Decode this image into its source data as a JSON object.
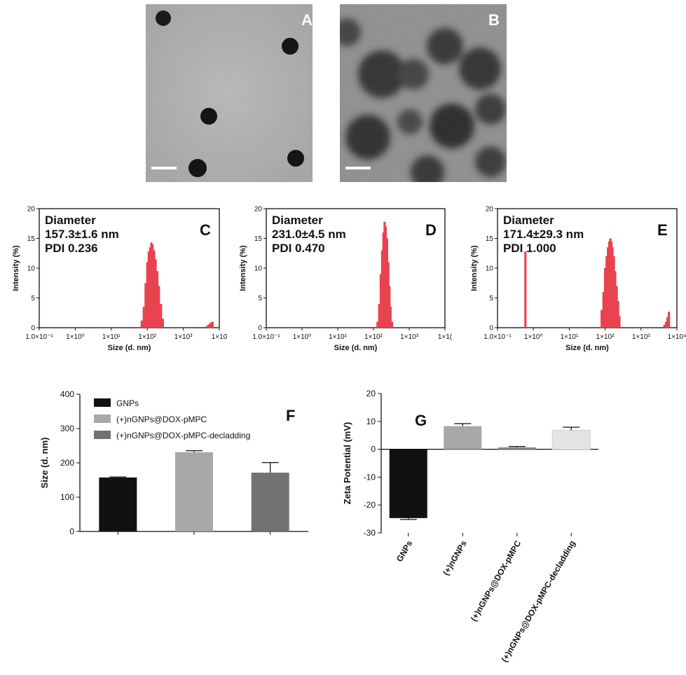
{
  "panels": {
    "A": {
      "letter": "A"
    },
    "B": {
      "letter": "B"
    }
  },
  "colors": {
    "dls_bar": "#e8434f",
    "series": [
      "#111111",
      "#a8a8a8",
      "#727272",
      "#111111",
      "#a8a8a8",
      "#8f8f8f",
      "#e4e4e4"
    ]
  },
  "chart_data": [
    {
      "id": "C",
      "type": "bar",
      "letter": "C",
      "annotation": [
        "Diameter",
        "157.3±1.6 nm",
        "PDI 0.236"
      ],
      "xlabel": "Size (d. nm)",
      "ylabel": "Intensity (%)",
      "xscale": "log",
      "xlim": [
        0.1,
        10000
      ],
      "ylim": [
        0,
        20
      ],
      "yticks": [
        0,
        5,
        10,
        15,
        20
      ],
      "xtick_labels": [
        "1.0×10⁻¹",
        "1×10⁰",
        "1×10¹",
        "1×10²",
        "1×10³",
        "1×10"
      ],
      "x": [
        70,
        80,
        90,
        100,
        110,
        120,
        130,
        140,
        155,
        170,
        190,
        210,
        240,
        270,
        4500,
        5000,
        5500,
        6000,
        6500
      ],
      "values": [
        1.2,
        3.5,
        7.5,
        11.0,
        12.8,
        13.5,
        14.3,
        14.0,
        13.0,
        11.5,
        9.5,
        7.0,
        4.0,
        1.5,
        0.3,
        0.5,
        0.7,
        0.9,
        1.0
      ]
    },
    {
      "id": "D",
      "type": "bar",
      "letter": "D",
      "annotation": [
        "Diameter",
        "231.0±4.5 nm",
        "PDI 0.470"
      ],
      "xlabel": "Size (d. nm)",
      "ylabel": "Intensity (%)",
      "xscale": "log",
      "xlim": [
        0.1,
        10000
      ],
      "ylim": [
        0,
        20
      ],
      "yticks": [
        0,
        5,
        10,
        15,
        20
      ],
      "xtick_labels": [
        "1.0×10⁻¹",
        "1×10⁰",
        "1×10¹",
        "1×10²",
        "1×10³",
        "1×1("
      ],
      "x": [
        130,
        145,
        160,
        175,
        190,
        205,
        220,
        240,
        260,
        280,
        300,
        330
      ],
      "values": [
        1.0,
        4.0,
        9.0,
        13.0,
        16.0,
        17.8,
        17.0,
        15.0,
        11.0,
        7.0,
        3.5,
        1.0
      ]
    },
    {
      "id": "E",
      "type": "bar",
      "letter": "E",
      "annotation": [
        "Diameter",
        "171.4±29.3 nm",
        "PDI 1.000"
      ],
      "xlabel": "Size (d. nm)",
      "ylabel": "Intensity (%)",
      "xscale": "log",
      "xlim": [
        0.1,
        10000
      ],
      "ylim": [
        0,
        20
      ],
      "yticks": [
        0,
        5,
        10,
        15,
        20
      ],
      "xtick_labels": [
        "1.0×10⁻¹",
        "1×10⁰",
        "1×10¹",
        "1×10²",
        "1×10³",
        "1×10⁴"
      ],
      "x": [
        0.6,
        80,
        90,
        100,
        110,
        120,
        130,
        140,
        150,
        160,
        175,
        190,
        210,
        230,
        250,
        4500,
        5000,
        5500,
        6000
      ],
      "values": [
        12.8,
        3.0,
        6.0,
        10.0,
        12.0,
        13.5,
        14.5,
        15.0,
        14.5,
        13.5,
        12.0,
        9.5,
        7.0,
        4.5,
        2.0,
        0.5,
        1.0,
        1.8,
        2.7
      ]
    },
    {
      "id": "F",
      "type": "bar",
      "letter": "F",
      "ylabel": "Size (d. nm)",
      "ylim": [
        0,
        400
      ],
      "yticks": [
        0,
        100,
        200,
        300,
        400
      ],
      "legend": [
        "GNPs",
        "(+)nGNPs@DOX-pMPC",
        "(+)nGNPs@DOX-pMPC-decladding"
      ],
      "values": [
        157.3,
        231.0,
        171.4
      ],
      "errors": [
        1.6,
        4.5,
        29.3
      ]
    },
    {
      "id": "G",
      "type": "bar",
      "letter": "G",
      "ylabel": "Zeta Potential (mV)",
      "ylim": [
        -30,
        20
      ],
      "yticks": [
        -30,
        -20,
        -10,
        0,
        10,
        20
      ],
      "categories": [
        "GNPs",
        "(+)nGNPs",
        "(+)nGNPs@DOX-pMPC",
        "(+)nGNPs@DOX-pMPC-decladding"
      ],
      "values": [
        -24.7,
        8.3,
        0.7,
        6.8
      ],
      "errors": [
        0.5,
        0.9,
        0.3,
        1.1
      ]
    }
  ]
}
